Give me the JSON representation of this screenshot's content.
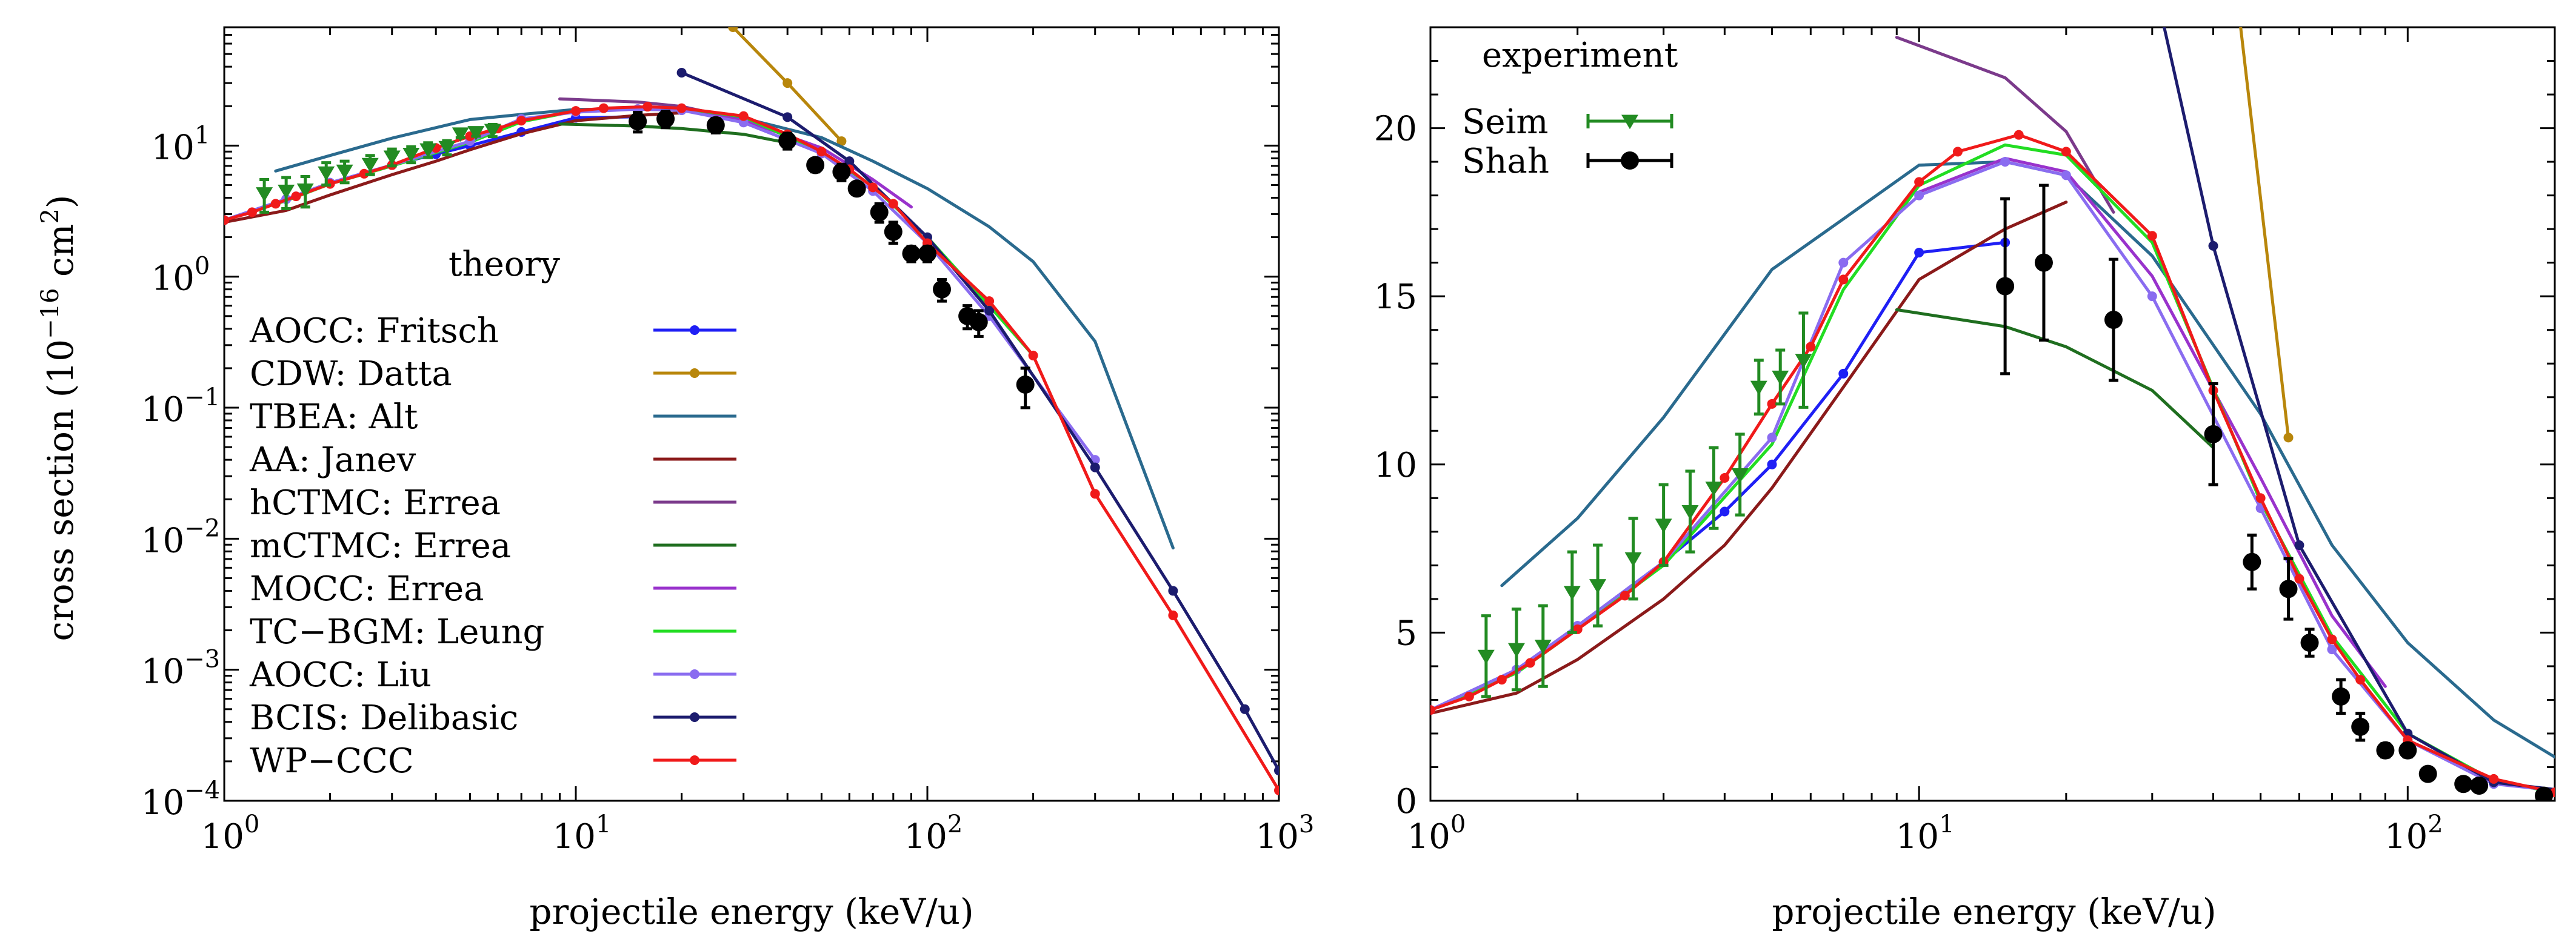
{
  "chart_data": [
    {
      "type": "line",
      "scale": "log-log",
      "xlabel": "projectile energy (keV/u)",
      "ylabel_main": "cross section (10",
      "ylabel_exp": "−16",
      "ylabel_unit": " cm",
      "ylabel_unit_exp": "2",
      "ylabel_close": ")",
      "xlim": [
        1,
        1000
      ],
      "ylim": [
        0.0001,
        80
      ],
      "x_ticks": [
        {
          "base": "10",
          "exp": "0",
          "v": 1
        },
        {
          "base": "10",
          "exp": "1",
          "v": 10
        },
        {
          "base": "10",
          "exp": "2",
          "v": 100
        },
        {
          "base": "10",
          "exp": "3",
          "v": 1000
        }
      ],
      "y_ticks": [
        {
          "base": "10",
          "exp": "−4",
          "v": 0.0001
        },
        {
          "base": "10",
          "exp": "−3",
          "v": 0.001
        },
        {
          "base": "10",
          "exp": "−2",
          "v": 0.01
        },
        {
          "base": "10",
          "exp": "−1",
          "v": 0.1
        },
        {
          "base": "10",
          "exp": "0",
          "text": "10",
          "v": 1,
          "plain": "10",
          "lab": "1.0"
        },
        {
          "v": 10,
          "plain": "10",
          "exp": "1",
          "base": "10"
        }
      ],
      "legend_title": "theory",
      "series": [
        {
          "name": "AOCC: Fritsch",
          "color": "#1f1ff5",
          "marker": true,
          "x": [
            1,
            1.5,
            2,
            3,
            4,
            5,
            7,
            10,
            15
          ],
          "y": [
            2.7,
            3.9,
            5.2,
            7.1,
            8.6,
            10.0,
            12.7,
            16.3,
            16.6
          ]
        },
        {
          "name": "CDW: Datta",
          "color": "#b8860b",
          "marker": true,
          "x": [
            28,
            40,
            57
          ],
          "y": [
            80,
            30,
            10.8
          ]
        },
        {
          "name": "TBEA: Alt",
          "color": "#2a6a8e",
          "marker": false,
          "x": [
            1.4,
            2,
            3,
            5,
            7,
            10,
            15,
            20,
            30,
            50,
            70,
            100,
            150,
            200,
            300,
            500
          ],
          "y": [
            6.4,
            8.4,
            11.4,
            15.8,
            17.3,
            18.9,
            19.0,
            18.6,
            16.2,
            11.5,
            7.6,
            4.7,
            2.4,
            1.3,
            0.32,
            0.0085
          ]
        },
        {
          "name": "AA: Janev",
          "color": "#8b1a1a",
          "marker": false,
          "x": [
            1,
            1.5,
            2,
            3,
            4,
            5,
            7,
            10,
            15,
            20
          ],
          "y": [
            2.6,
            3.2,
            4.2,
            6.0,
            7.6,
            9.3,
            12.3,
            15.5,
            17.0,
            17.8
          ]
        },
        {
          "name": "hCTMC: Errea",
          "color": "#7b3a8b",
          "marker": false,
          "x": [
            9,
            15,
            20,
            25
          ],
          "y": [
            22.7,
            21.5,
            19.9,
            17.5
          ]
        },
        {
          "name": "mCTMC: Errea",
          "color": "#1f6e1f",
          "marker": false,
          "x": [
            9,
            15,
            20,
            30,
            40
          ],
          "y": [
            14.6,
            14.1,
            13.5,
            12.2,
            10.5
          ]
        },
        {
          "name": "MOCC: Errea",
          "color": "#9932cc",
          "marker": false,
          "x": [
            10,
            15,
            20,
            30,
            50,
            70,
            90
          ],
          "y": [
            18.1,
            19.1,
            18.7,
            15.6,
            9.6,
            5.5,
            3.4
          ]
        },
        {
          "name": "TC−BGM: Leung",
          "color": "#22dd22",
          "marker": false,
          "x": [
            1,
            1.5,
            2,
            3,
            5,
            7,
            10,
            15,
            20,
            30,
            50,
            70,
            100,
            150,
            200
          ],
          "y": [
            2.7,
            3.8,
            5.1,
            7.0,
            10.6,
            15.2,
            18.3,
            19.5,
            19.2,
            16.6,
            8.9,
            4.9,
            2.0,
            0.6,
            0.25
          ]
        },
        {
          "name": "AOCC: Liu",
          "color": "#8a6cf0",
          "marker": true,
          "x": [
            1,
            1.5,
            2,
            3,
            5,
            7,
            10,
            15,
            20,
            30,
            50,
            70,
            100,
            150,
            300
          ],
          "y": [
            2.7,
            3.9,
            5.2,
            7.1,
            10.8,
            16.0,
            18.0,
            19.0,
            18.6,
            15.0,
            8.7,
            4.5,
            1.8,
            0.5,
            0.04
          ]
        },
        {
          "name": "BCIS: Delibasic",
          "color": "#1c1c6e",
          "marker": true,
          "x": [
            20,
            40,
            60,
            100,
            150,
            300,
            500,
            800,
            1000
          ],
          "y": [
            36,
            16.5,
            7.6,
            2.0,
            0.55,
            0.035,
            0.004,
            0.0005,
            0.00017
          ]
        },
        {
          "name": "WP−CCC",
          "color": "#f01a1a",
          "marker": true,
          "x": [
            1,
            1.2,
            1.4,
            1.6,
            2,
            2.5,
            3,
            4,
            5,
            6,
            7,
            10,
            12,
            16,
            20,
            30,
            40,
            50,
            60,
            70,
            80,
            100,
            150,
            200,
            300,
            500,
            1000
          ],
          "y": [
            2.7,
            3.1,
            3.6,
            4.1,
            5.1,
            6.1,
            7.1,
            9.6,
            11.8,
            13.5,
            15.5,
            18.4,
            19.3,
            19.8,
            19.3,
            16.8,
            12.2,
            9.0,
            6.6,
            4.8,
            3.6,
            1.8,
            0.65,
            0.25,
            0.022,
            0.0026,
            0.00012
          ]
        }
      ],
      "experiment": [
        {
          "name": "Seim",
          "color": "#228b22",
          "marker": "triangle-down",
          "x": [
            1.3,
            1.5,
            1.7,
            1.95,
            2.2,
            2.6,
            3.0,
            3.4,
            3.8,
            4.3,
            4.7,
            5.2,
            5.8
          ],
          "y": [
            4.3,
            4.5,
            4.6,
            6.2,
            6.4,
            7.2,
            8.2,
            8.6,
            9.3,
            9.7,
            12.3,
            12.6,
            13.1
          ],
          "err": [
            1.2,
            1.2,
            1.2,
            1.2,
            1.2,
            1.2,
            1.2,
            1.2,
            1.2,
            1.2,
            0.8,
            0.8,
            1.4
          ]
        },
        {
          "name": "Shah",
          "color": "#000000",
          "marker": "circle",
          "x": [
            15,
            18,
            25,
            40,
            48,
            57,
            63,
            73,
            80,
            90,
            100,
            110,
            130,
            140,
            190
          ],
          "y": [
            15.3,
            16.0,
            14.3,
            10.9,
            7.1,
            6.3,
            4.7,
            3.1,
            2.2,
            1.5,
            1.5,
            0.8,
            0.5,
            0.45,
            0.15
          ],
          "err": [
            2.6,
            2.3,
            1.8,
            1.5,
            0.8,
            0.9,
            0.4,
            0.5,
            0.4,
            0.2,
            0.2,
            0.15,
            0.1,
            0.1,
            0.05
          ]
        }
      ]
    },
    {
      "type": "line",
      "scale": "log-linear",
      "xlabel": "projectile energy (keV/u)",
      "xlim": [
        1,
        200
      ],
      "ylim": [
        0,
        23
      ],
      "x_ticks": [
        {
          "base": "10",
          "exp": "0",
          "v": 1
        },
        {
          "base": "10",
          "exp": "1",
          "v": 10
        },
        {
          "base": "10",
          "exp": "2",
          "v": 100
        }
      ],
      "y_ticks": [
        0,
        5,
        10,
        15,
        20
      ],
      "legend_title": "experiment"
    }
  ]
}
